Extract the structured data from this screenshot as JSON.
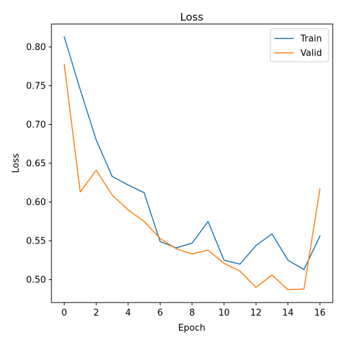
{
  "chart_data": {
    "type": "line",
    "title": "Loss",
    "xlabel": "Epoch",
    "ylabel": "Loss",
    "x": [
      0,
      1,
      2,
      3,
      4,
      5,
      6,
      7,
      8,
      9,
      10,
      11,
      12,
      13,
      14,
      15,
      16
    ],
    "xlim": [
      -0.8,
      16.8
    ],
    "ylim": [
      0.4705,
      0.8295
    ],
    "xticks": [
      0,
      2,
      4,
      6,
      8,
      10,
      12,
      14,
      16
    ],
    "yticks": [
      0.5,
      0.55,
      0.6,
      0.65,
      0.7,
      0.75,
      0.8
    ],
    "xtick_labels": [
      "0",
      "2",
      "4",
      "6",
      "8",
      "10",
      "12",
      "14",
      "16"
    ],
    "ytick_labels": [
      "0.50",
      "0.55",
      "0.60",
      "0.65",
      "0.70",
      "0.75",
      "0.80"
    ],
    "grid": false,
    "legend_position": "top-right",
    "series": [
      {
        "name": "Train",
        "color": "#1f77b4",
        "values": [
          0.813,
          0.745,
          0.68,
          0.633,
          0.622,
          0.612,
          0.549,
          0.541,
          0.547,
          0.575,
          0.525,
          0.52,
          0.544,
          0.559,
          0.525,
          0.513,
          0.556
        ]
      },
      {
        "name": "Valid",
        "color": "#ff7f0e",
        "values": [
          0.777,
          0.613,
          0.641,
          0.609,
          0.59,
          0.575,
          0.553,
          0.54,
          0.533,
          0.538,
          0.521,
          0.511,
          0.49,
          0.506,
          0.487,
          0.488,
          0.617
        ]
      }
    ]
  }
}
